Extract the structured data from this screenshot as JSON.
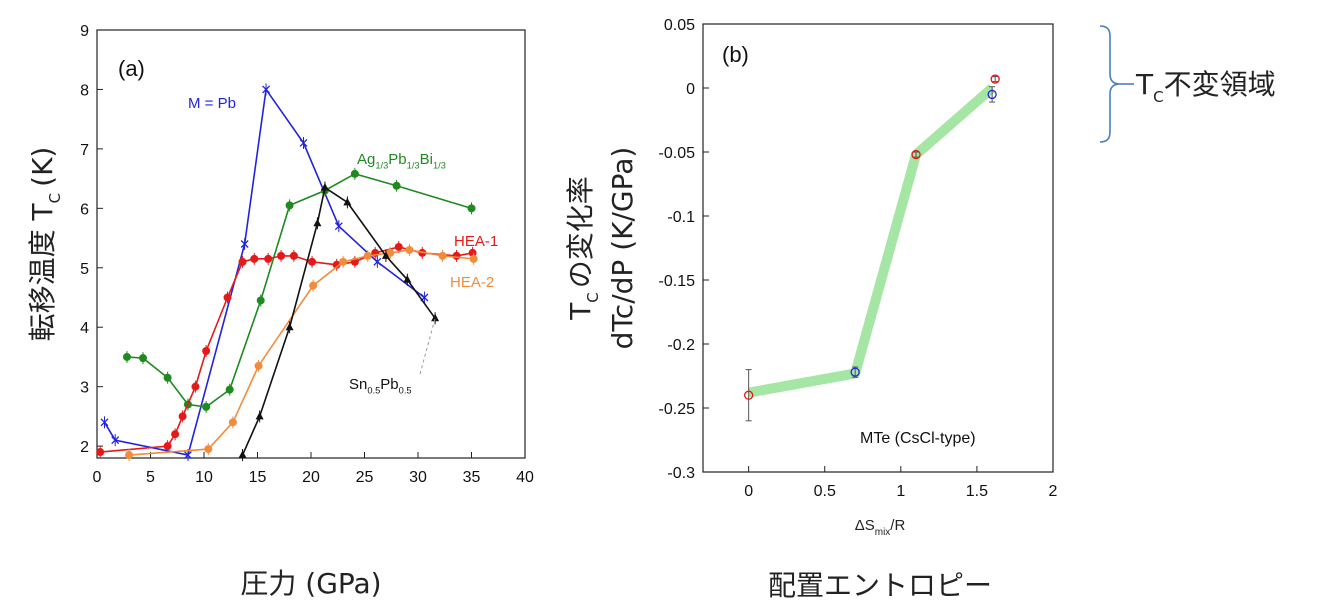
{
  "chart_data": [
    {
      "type": "line",
      "panel_label": "(a)",
      "xlabel": "圧力 (GPa)",
      "ylabel_main": "転移温度 T",
      "ylabel_sub": "C",
      "ylabel_unit": "(K)",
      "xlim": [
        0,
        40
      ],
      "ylim": [
        1.8,
        9
      ],
      "xticks": [
        "0",
        "5",
        "10",
        "15",
        "20",
        "25",
        "30",
        "35",
        "40"
      ],
      "yticks": [
        "2",
        "3",
        "4",
        "5",
        "6",
        "7",
        "8",
        "9"
      ],
      "series": [
        {
          "name": "M = Pb",
          "label_parts": [
            "M = Pb"
          ],
          "color": "#2222dd",
          "marker": "x",
          "points": [
            [
              0.7,
              2.4
            ],
            [
              1.7,
              2.1
            ],
            [
              8.5,
              1.85
            ],
            [
              13.8,
              5.4
            ],
            [
              15.8,
              8.0
            ],
            [
              19.3,
              7.1
            ],
            [
              22.6,
              5.7
            ],
            [
              26.2,
              5.1
            ],
            [
              30.6,
              4.5
            ]
          ]
        },
        {
          "name": "Ag1/3Pb1/3Bi1/3",
          "label_parts": [
            "Ag",
            "1/3",
            "Pb",
            "1/3",
            "Bi",
            "1/3"
          ],
          "color": "#1f8a1f",
          "marker": "circle",
          "points": [
            [
              2.8,
              3.5
            ],
            [
              4.3,
              3.48
            ],
            [
              6.6,
              3.15
            ],
            [
              8.5,
              2.7
            ],
            [
              10.2,
              2.66
            ],
            [
              12.4,
              2.95
            ],
            [
              15.3,
              4.45
            ],
            [
              18.0,
              6.05
            ],
            [
              21.3,
              6.3
            ],
            [
              24.1,
              6.58
            ],
            [
              28.0,
              6.38
            ],
            [
              35.0,
              6.0
            ]
          ]
        },
        {
          "name": "HEA-1",
          "label_parts": [
            "HEA-1"
          ],
          "color": "#e61919",
          "marker": "circle",
          "points": [
            [
              0.3,
              1.9
            ],
            [
              6.6,
              2.0
            ],
            [
              7.3,
              2.2
            ],
            [
              8.0,
              2.5
            ],
            [
              9.2,
              3.0
            ],
            [
              10.2,
              3.6
            ],
            [
              12.2,
              4.5
            ],
            [
              13.6,
              5.1
            ],
            [
              14.7,
              5.15
            ],
            [
              16.0,
              5.15
            ],
            [
              17.2,
              5.2
            ],
            [
              18.4,
              5.2
            ],
            [
              20.1,
              5.1
            ],
            [
              22.4,
              5.05
            ],
            [
              24.1,
              5.1
            ],
            [
              26.0,
              5.25
            ],
            [
              28.2,
              5.35
            ],
            [
              30.4,
              5.25
            ],
            [
              33.6,
              5.2
            ],
            [
              35.1,
              5.25
            ]
          ]
        },
        {
          "name": "HEA-2",
          "label_parts": [
            "HEA-2"
          ],
          "color": "#f08c3c",
          "marker": "circle",
          "points": [
            [
              3.0,
              1.85
            ],
            [
              10.4,
              1.95
            ],
            [
              12.7,
              2.4
            ],
            [
              15.1,
              3.35
            ],
            [
              20.2,
              4.7
            ],
            [
              23.0,
              5.1
            ],
            [
              25.3,
              5.2
            ],
            [
              27.4,
              5.25
            ],
            [
              29.2,
              5.3
            ],
            [
              32.3,
              5.2
            ],
            [
              35.2,
              5.15
            ]
          ]
        },
        {
          "name": "Sn0.5Pb0.5",
          "label_parts": [
            "Sn",
            "0.5",
            "Pb",
            "0.5"
          ],
          "color": "#111111",
          "marker": "triangle",
          "points": [
            [
              13.6,
              1.85
            ],
            [
              15.2,
              2.5
            ],
            [
              18.0,
              4.0
            ],
            [
              20.6,
              5.75
            ],
            [
              21.3,
              6.35
            ],
            [
              23.4,
              6.1
            ],
            [
              27.0,
              5.2
            ],
            [
              29.0,
              4.8
            ],
            [
              31.6,
              4.15
            ]
          ]
        }
      ]
    },
    {
      "type": "line",
      "panel_label": "(b)",
      "xlabel_base": "ΔS",
      "xlabel_sub": "mix",
      "xlabel_tail": "/R",
      "ylabel_line1_main": "T",
      "ylabel_line1_sub": "C",
      "ylabel_line1_rest": "の変化率",
      "ylabel_line2": "dTc/dP (K/GPa)",
      "bottom_caption": "配置エントロピー",
      "annotation": "MTe (CsCl-type)",
      "xlim": [
        -0.3,
        2
      ],
      "ylim": [
        -0.3,
        0.05
      ],
      "xticks": [
        "0",
        "0.5",
        "1",
        "1.5",
        "2"
      ],
      "yticks": [
        "0.05",
        "0",
        "-0.05",
        "-0.1",
        "-0.15",
        "-0.2",
        "-0.25",
        "-0.3"
      ],
      "trend": [
        [
          0,
          -0.238
        ],
        [
          0.7,
          -0.223
        ],
        [
          1.1,
          -0.052
        ],
        [
          1.6,
          0
        ]
      ],
      "points": [
        {
          "x": 0,
          "y": -0.24,
          "err": 0.02,
          "color": "#e61919"
        },
        {
          "x": 0.7,
          "y": -0.222,
          "err": 0.004,
          "color": "#2222dd"
        },
        {
          "x": 1.1,
          "y": -0.052,
          "err": 0.002,
          "color": "#e61919"
        },
        {
          "x": 1.6,
          "y": -0.005,
          "err": 0.006,
          "color": "#2222dd"
        },
        {
          "x": 1.62,
          "y": 0.007,
          "err": 0.002,
          "color": "#e61919"
        }
      ]
    }
  ],
  "bracket_label_main": "T",
  "bracket_label_sub": "C",
  "bracket_label_rest": "不変領域"
}
